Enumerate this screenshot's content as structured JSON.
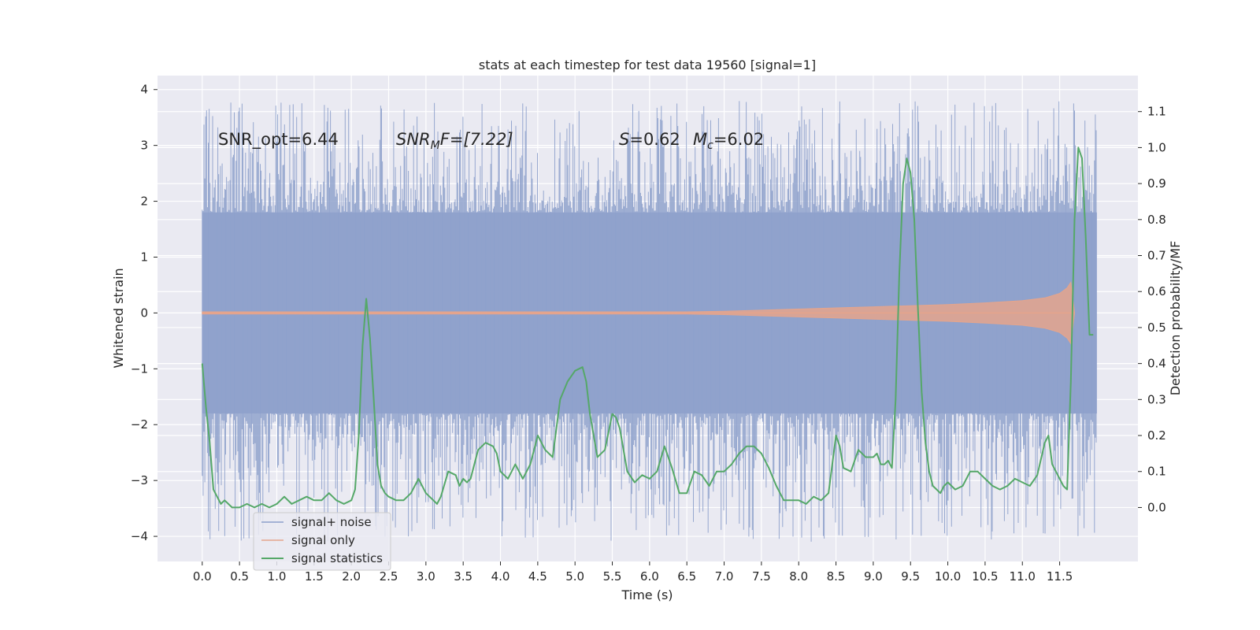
{
  "chart_data": {
    "type": "line",
    "title": "stats at each timestep for test data 19560 [signal=1]",
    "xlabel": "Time (s)",
    "ylabel": "Whitened strain",
    "y2label": "Detection probability/MF",
    "xlim": [
      -0.6,
      12.55
    ],
    "ylim": [
      -4.45,
      4.25
    ],
    "y2lim": [
      -0.15,
      1.2
    ],
    "xticks": [
      "0.0",
      "0.5",
      "1.0",
      "1.5",
      "2.0",
      "2.5",
      "3.0",
      "3.5",
      "4.0",
      "4.5",
      "5.0",
      "5.5",
      "6.0",
      "6.5",
      "7.0",
      "7.5",
      "8.0",
      "8.5",
      "9.0",
      "9.5",
      "10.0",
      "10.5",
      "11.0",
      "11.5"
    ],
    "yticks": [
      "4",
      "3",
      "2",
      "1",
      "0",
      "−1",
      "−2",
      "−3",
      "−4"
    ],
    "y2ticks": [
      "1.1",
      "1.0",
      "0.9",
      "0.8",
      "0.7",
      "0.6",
      "0.5",
      "0.4",
      "0.3",
      "0.2",
      "0.1",
      "0.0"
    ],
    "grid": true,
    "legend_position": "lower-left",
    "annotations": {
      "snr_opt": "SNR_opt=6.44",
      "snr_mf_base": "SNR",
      "snr_mf_sub": "M",
      "snr_mf_rest": "F=[7.22]",
      "s_italic": "S",
      "s_value": "=0.62",
      "mc_base": "M",
      "mc_sub": "c",
      "mc_value": "=6.02"
    },
    "colors": {
      "signal_noise": "#8da0cb",
      "signal_only": "#e5a58c",
      "signal_statistics": "#55a868",
      "background": "#eaeaf2"
    },
    "series": [
      {
        "name": "signal+ noise",
        "t_range": [
          0.0,
          12.0
        ],
        "envelope_p95": 1.8,
        "envelope_max": 3.8,
        "min": -4.1,
        "note_values_sampled": true
      },
      {
        "name": "signal only",
        "t": [
          0.0,
          6.5,
          7.0,
          7.5,
          8.0,
          8.5,
          9.0,
          9.5,
          10.0,
          10.5,
          11.0,
          11.3,
          11.5,
          11.6,
          11.65,
          11.7
        ],
        "amp": [
          0.02,
          0.02,
          0.03,
          0.05,
          0.07,
          0.09,
          0.11,
          0.13,
          0.15,
          0.18,
          0.22,
          0.27,
          0.35,
          0.45,
          0.55,
          0.0
        ]
      },
      {
        "name": "signal statistics",
        "t": [
          0.0,
          0.05,
          0.1,
          0.15,
          0.2,
          0.25,
          0.3,
          0.4,
          0.5,
          0.6,
          0.7,
          0.8,
          0.9,
          1.0,
          1.1,
          1.2,
          1.3,
          1.4,
          1.5,
          1.6,
          1.7,
          1.8,
          1.9,
          2.0,
          2.05,
          2.1,
          2.15,
          2.2,
          2.25,
          2.3,
          2.35,
          2.4,
          2.45,
          2.5,
          2.6,
          2.7,
          2.8,
          2.9,
          3.0,
          3.1,
          3.15,
          3.2,
          3.3,
          3.4,
          3.45,
          3.5,
          3.55,
          3.6,
          3.7,
          3.8,
          3.9,
          3.95,
          4.0,
          4.1,
          4.2,
          4.3,
          4.4,
          4.5,
          4.6,
          4.7,
          4.8,
          4.9,
          5.0,
          5.1,
          5.15,
          5.2,
          5.3,
          5.4,
          5.5,
          5.55,
          5.6,
          5.7,
          5.8,
          5.9,
          6.0,
          6.1,
          6.2,
          6.3,
          6.4,
          6.5,
          6.6,
          6.7,
          6.8,
          6.9,
          7.0,
          7.1,
          7.2,
          7.3,
          7.4,
          7.5,
          7.6,
          7.7,
          7.8,
          7.9,
          8.0,
          8.1,
          8.2,
          8.3,
          8.4,
          8.5,
          8.55,
          8.6,
          8.7,
          8.8,
          8.9,
          9.0,
          9.05,
          9.1,
          9.15,
          9.2,
          9.25,
          9.3,
          9.35,
          9.4,
          9.45,
          9.5,
          9.55,
          9.6,
          9.65,
          9.7,
          9.75,
          9.8,
          9.85,
          9.9,
          9.95,
          10.0,
          10.1,
          10.2,
          10.3,
          10.4,
          10.5,
          10.6,
          10.7,
          10.8,
          10.9,
          11.0,
          11.1,
          11.2,
          11.3,
          11.35,
          11.4,
          11.5,
          11.55,
          11.6,
          11.65,
          11.7,
          11.75,
          11.8,
          11.85,
          11.9,
          11.95
        ],
        "values": [
          0.4,
          0.28,
          0.18,
          0.05,
          0.03,
          0.01,
          0.02,
          0.0,
          0.0,
          0.01,
          0.0,
          0.01,
          0.0,
          0.01,
          0.03,
          0.01,
          0.02,
          0.03,
          0.02,
          0.02,
          0.04,
          0.02,
          0.01,
          0.02,
          0.05,
          0.2,
          0.45,
          0.58,
          0.47,
          0.3,
          0.12,
          0.06,
          0.04,
          0.03,
          0.02,
          0.02,
          0.04,
          0.08,
          0.04,
          0.02,
          0.01,
          0.03,
          0.1,
          0.09,
          0.06,
          0.08,
          0.07,
          0.08,
          0.16,
          0.18,
          0.17,
          0.15,
          0.1,
          0.08,
          0.12,
          0.08,
          0.12,
          0.2,
          0.16,
          0.14,
          0.3,
          0.35,
          0.38,
          0.39,
          0.35,
          0.26,
          0.14,
          0.16,
          0.26,
          0.25,
          0.22,
          0.1,
          0.07,
          0.09,
          0.08,
          0.1,
          0.17,
          0.11,
          0.04,
          0.04,
          0.1,
          0.09,
          0.06,
          0.1,
          0.1,
          0.12,
          0.15,
          0.17,
          0.17,
          0.15,
          0.11,
          0.06,
          0.02,
          0.02,
          0.02,
          0.01,
          0.03,
          0.02,
          0.04,
          0.2,
          0.17,
          0.11,
          0.1,
          0.16,
          0.14,
          0.14,
          0.15,
          0.12,
          0.12,
          0.13,
          0.11,
          0.3,
          0.65,
          0.9,
          0.97,
          0.93,
          0.8,
          0.55,
          0.32,
          0.18,
          0.1,
          0.06,
          0.05,
          0.04,
          0.06,
          0.07,
          0.05,
          0.06,
          0.1,
          0.1,
          0.08,
          0.06,
          0.05,
          0.06,
          0.08,
          0.07,
          0.06,
          0.09,
          0.18,
          0.2,
          0.12,
          0.08,
          0.06,
          0.05,
          0.35,
          0.8,
          1.0,
          0.97,
          0.75,
          0.48,
          0.48
        ]
      }
    ]
  }
}
